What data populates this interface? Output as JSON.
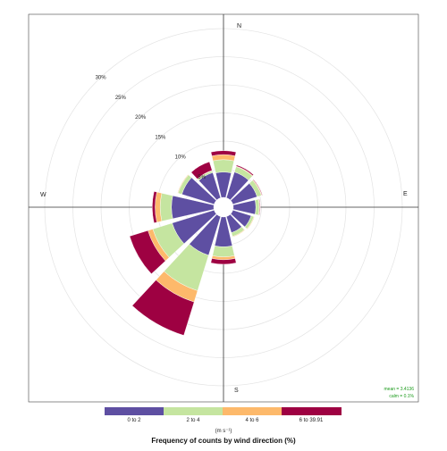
{
  "chart_data": {
    "type": "windrose",
    "title": "",
    "directions_labels": {
      "north": "N",
      "east": "E",
      "south": "S",
      "west": "W"
    },
    "radial_axis": {
      "ticks": [
        5,
        10,
        15,
        20,
        25,
        30
      ],
      "tick_labels": [
        "5%",
        "10%",
        "15%",
        "20%",
        "25%",
        "30%"
      ],
      "max": 32
    },
    "bin_width_deg": 30,
    "directions_deg": [
      0,
      30,
      60,
      90,
      120,
      150,
      180,
      210,
      240,
      270,
      300,
      330
    ],
    "series": [
      {
        "name": "0 to 2",
        "color": "#5e4fa2",
        "values": [
          4.5,
          4.8,
          4.5,
          4.0,
          3.4,
          3.0,
          5.3,
          7.2,
          7.8,
          7.5,
          6.0,
          4.7
        ]
      },
      {
        "name": "2 to 4",
        "color": "#c5e5a0",
        "values": [
          2.2,
          1.0,
          0.8,
          0.6,
          0.5,
          0.7,
          1.8,
          6.6,
          3.6,
          2.0,
          0.7,
          0.3
        ]
      },
      {
        "name": "4 to 6",
        "color": "#fdb96b",
        "values": [
          0.9,
          0.1,
          0.1,
          0.1,
          0.1,
          0.1,
          0.5,
          2.1,
          0.9,
          0.9,
          0.1,
          0.1
        ]
      },
      {
        "name": "6 to 39.91",
        "color": "#9e0142",
        "values": [
          0.7,
          0.2,
          0.1,
          0.1,
          0.0,
          0.0,
          0.8,
          6.2,
          3.4,
          0.5,
          0.0,
          1.6
        ]
      }
    ],
    "legend": {
      "labels": [
        "0 to 2",
        "2 to 4",
        "4 to 6",
        "6 to 39.91"
      ],
      "colors": [
        "#5e4fa2",
        "#c5e5a0",
        "#fdb96b",
        "#9e0142"
      ],
      "units": "(m s⁻¹)",
      "caption": "Frequency of counts by wind direction (%)",
      "placement": "bottom"
    },
    "stats": {
      "mean": "mean = 3.4136",
      "calm": "calm = 0.1%"
    }
  }
}
